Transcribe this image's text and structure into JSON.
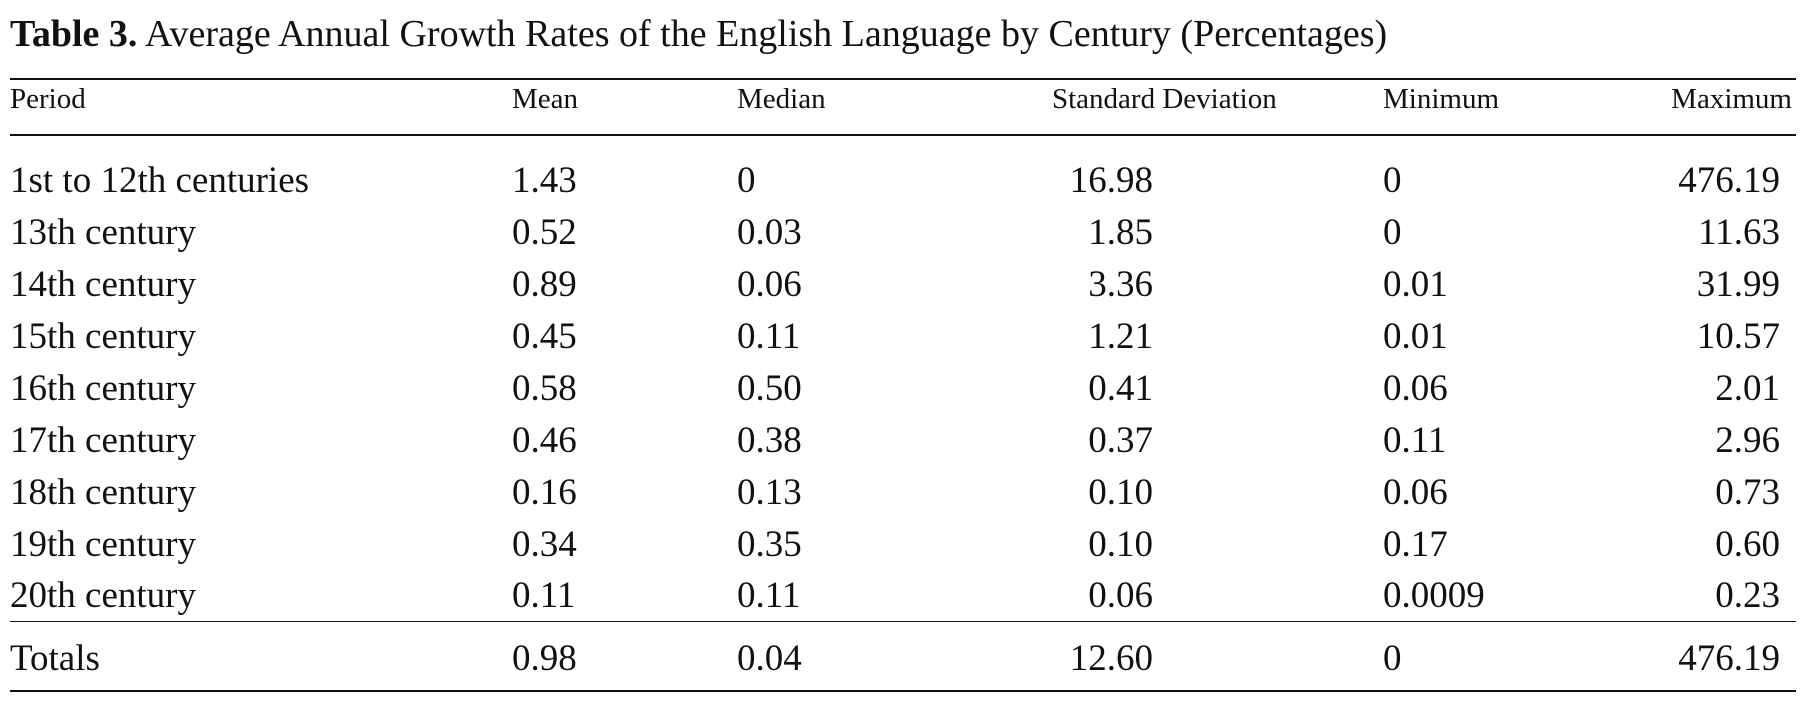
{
  "caption": {
    "label": "Table 3.",
    "text": "Average Annual Growth Rates of the English Language by Century (Percentages)"
  },
  "table": {
    "headers": [
      "Period",
      "Mean",
      "Median",
      "Standard Deviation",
      "Minimum",
      "Maximum"
    ],
    "rows": [
      [
        "1st to 12th centuries",
        "1.43",
        "0",
        "16.98",
        "0",
        "476.19"
      ],
      [
        "13th century",
        "0.52",
        "0.03",
        "1.85",
        "0",
        "11.63"
      ],
      [
        "14th century",
        "0.89",
        "0.06",
        "3.36",
        "0.01",
        "31.99"
      ],
      [
        "15th century",
        "0.45",
        "0.11",
        "1.21",
        "0.01",
        "10.57"
      ],
      [
        "16th century",
        "0.58",
        "0.50",
        "0.41",
        "0.06",
        "2.01"
      ],
      [
        "17th century",
        "0.46",
        "0.38",
        "0.37",
        "0.11",
        "2.96"
      ],
      [
        "18th century",
        "0.16",
        "0.13",
        "0.10",
        "0.06",
        "0.73"
      ],
      [
        "19th century",
        "0.34",
        "0.35",
        "0.10",
        "0.17",
        "0.60"
      ],
      [
        "20th century",
        "0.11",
        "0.11",
        "0.06",
        "0.0009",
        "0.23"
      ]
    ],
    "totals": [
      "Totals",
      "0.98",
      "0.04",
      "12.60",
      "0",
      "476.19"
    ]
  }
}
